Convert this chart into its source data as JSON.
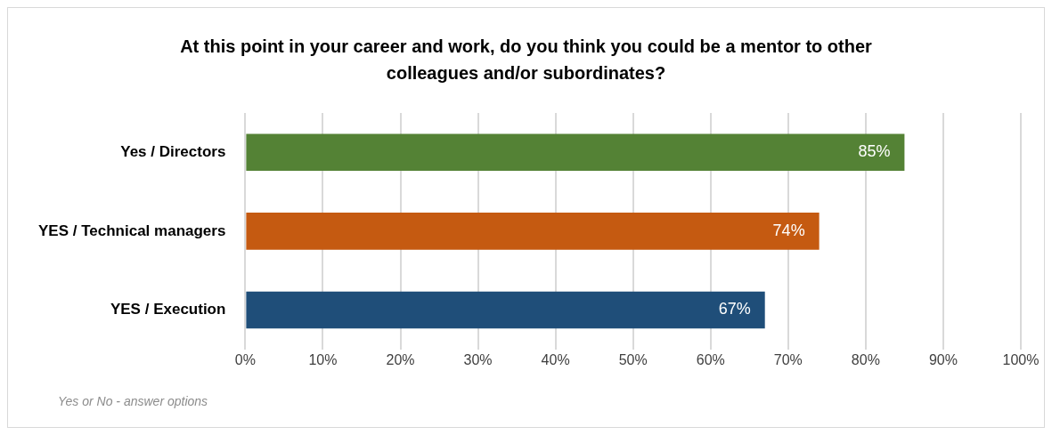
{
  "chart_data": {
    "type": "bar",
    "orientation": "horizontal",
    "title": "At this point in your career and work, do you think you could be a mentor to other colleagues and/or subordinates?",
    "categories": [
      "Yes / Directors",
      "YES / Technical managers",
      "YES / Execution"
    ],
    "values": [
      85,
      74,
      67
    ],
    "colors": [
      "#548235",
      "#c55a11",
      "#1f4e79"
    ],
    "value_labels": [
      "85%",
      "74%",
      "67%"
    ],
    "xlim": [
      0,
      100
    ],
    "xticks": [
      {
        "value": 0,
        "label": "0%"
      },
      {
        "value": 10,
        "label": "10%"
      },
      {
        "value": 20,
        "label": "20%"
      },
      {
        "value": 30,
        "label": "30%"
      },
      {
        "value": 40,
        "label": "40%"
      },
      {
        "value": 50,
        "label": "50%"
      },
      {
        "value": 60,
        "label": "60%"
      },
      {
        "value": 70,
        "label": "70%"
      },
      {
        "value": 80,
        "label": "80%"
      },
      {
        "value": 90,
        "label": "90%"
      },
      {
        "value": 100,
        "label": "100%"
      }
    ],
    "grid": "x",
    "annotations": [
      "Yes or No - answer options"
    ]
  }
}
